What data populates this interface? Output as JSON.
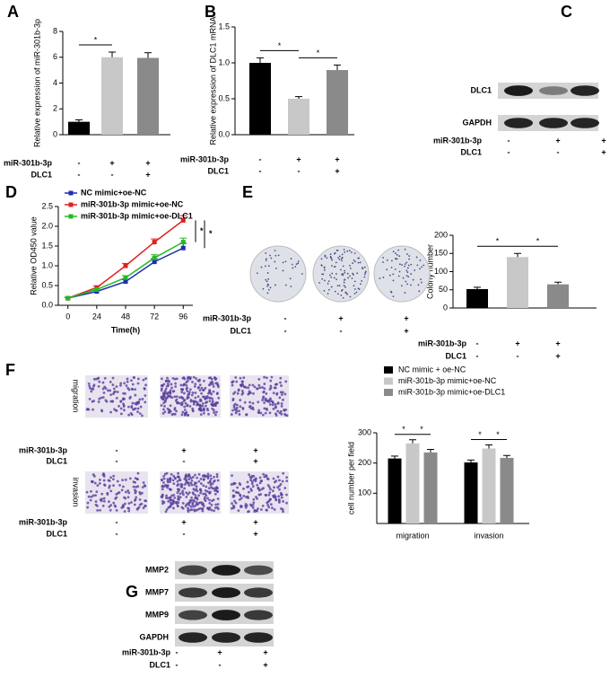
{
  "panel_labels": [
    "A",
    "B",
    "C",
    "D",
    "E",
    "F",
    "G"
  ],
  "chart_data": [
    {
      "type": "bar",
      "ylabel": "Relative expression of miR-301b-3p",
      "values": [
        1.0,
        6.0,
        5.95
      ],
      "errors": [
        0.15,
        0.4,
        0.4
      ],
      "colors": [
        "#000000",
        "#c8c8c8",
        "#8a8a8a"
      ],
      "ylim": [
        0,
        8
      ],
      "yticks": [
        0,
        2,
        4,
        6,
        8
      ],
      "annotations": [
        "*"
      ],
      "treatments": [
        {
          "label": "miR-301b-3p",
          "signs": [
            "-",
            "+",
            "+"
          ]
        },
        {
          "label": "DLC1",
          "signs": [
            "-",
            "-",
            "+"
          ]
        }
      ]
    },
    {
      "type": "bar",
      "ylabel": "Relative expression of DLC1 mRNA",
      "values": [
        1.0,
        0.5,
        0.9
      ],
      "errors": [
        0.07,
        0.03,
        0.07
      ],
      "colors": [
        "#000000",
        "#c8c8c8",
        "#8a8a8a"
      ],
      "ylim": [
        0,
        1.5
      ],
      "yticks": [
        {
          "value": 0,
          "label": "0.0"
        },
        {
          "value": 0.5,
          "label": "0.5"
        },
        {
          "value": 1,
          "label": "1.0"
        },
        {
          "value": 1.5,
          "label": "1.5"
        }
      ],
      "annotations": [
        "*",
        "*"
      ],
      "treatments": [
        {
          "label": "miR-301b-3p",
          "signs": [
            "-",
            "+",
            "+"
          ]
        },
        {
          "label": "DLC1",
          "signs": [
            "-",
            "-",
            "+"
          ]
        }
      ]
    },
    {
      "type": "line",
      "xlabel": "Time(h)",
      "ylabel": "Relative OD450 value",
      "x": [
        0,
        24,
        48,
        72,
        96
      ],
      "xlim": [
        -8,
        104
      ],
      "xticks": [
        0,
        24,
        48,
        72,
        96
      ],
      "ylim": [
        0,
        2.5
      ],
      "yticks": [
        {
          "value": 0,
          "label": "0.0"
        },
        {
          "value": 0.5,
          "label": "0.5"
        },
        {
          "value": 1,
          "label": "1.0"
        },
        {
          "value": 1.5,
          "label": "1.5"
        },
        {
          "value": 2,
          "label": "2.0"
        },
        {
          "value": 2.5,
          "label": "2.5"
        }
      ],
      "annotations": [
        "*",
        "*"
      ],
      "series": [
        {
          "name": "NC mimic+oe-NC",
          "color": "#1f2fb0",
          "values": [
            0.18,
            0.35,
            0.6,
            1.1,
            1.45
          ],
          "errors": [
            0.02,
            0.03,
            0.05,
            0.08,
            0.12
          ]
        },
        {
          "name": "miR-301b-3p mimic+oe-NC",
          "color": "#e02020",
          "values": [
            0.18,
            0.45,
            1.0,
            1.6,
            2.15
          ],
          "errors": [
            0.02,
            0.04,
            0.06,
            0.08,
            0.12
          ]
        },
        {
          "name": "miR-301b-3p mimic+oe-DLC1",
          "color": "#22bb22",
          "values": [
            0.18,
            0.4,
            0.7,
            1.2,
            1.6
          ],
          "errors": [
            0.02,
            0.03,
            0.05,
            0.08,
            0.1
          ]
        }
      ]
    },
    {
      "type": "bar",
      "ylabel": "Colony number",
      "values": [
        52,
        140,
        65
      ],
      "errors": [
        5,
        10,
        6
      ],
      "colors": [
        "#000000",
        "#c8c8c8",
        "#8a8a8a"
      ],
      "ylim": [
        0,
        200
      ],
      "yticks": [
        0,
        50,
        100,
        150,
        200
      ],
      "annotations": [
        "*",
        "*"
      ],
      "treatments": [
        {
          "label": "miR-301b-3p",
          "signs": [
            "-",
            "+",
            "+"
          ]
        },
        {
          "label": "DLC1",
          "signs": [
            "-",
            "-",
            "+"
          ]
        }
      ]
    },
    {
      "type": "grouped-bar",
      "ylabel": "cell number per field",
      "categories": [
        "migration",
        "invasion"
      ],
      "ylim": [
        0,
        300
      ],
      "yticks": [
        100,
        200,
        300
      ],
      "annotations": [
        "*",
        "*",
        "*",
        "*"
      ],
      "series": [
        {
          "name": "NC mimic + oe-NC",
          "color": "#000000",
          "values": [
            215,
            202
          ],
          "errors": [
            8,
            8
          ]
        },
        {
          "name": "miR-301b-3p mimic+oe-NC",
          "color": "#c8c8c8",
          "values": [
            265,
            248
          ],
          "errors": [
            12,
            12
          ]
        },
        {
          "name": "miR-301b-3p mimic+oe-DLC1",
          "color": "#8a8a8a",
          "values": [
            235,
            217
          ],
          "errors": [
            10,
            8
          ]
        }
      ]
    }
  ],
  "blots": [
    {
      "bands": [
        "DLC1",
        "GAPDH"
      ],
      "treatments": [
        {
          "label": "miR-301b-3p",
          "signs": [
            "-",
            "+",
            "+"
          ]
        },
        {
          "label": "DLC1",
          "signs": [
            "-",
            "-",
            "+"
          ]
        }
      ]
    },
    {
      "bands": [
        "MMP2",
        "MMP7",
        "MMP9",
        "GAPDH"
      ],
      "treatments": [
        {
          "label": "miR-301b-3p",
          "signs": [
            "-",
            "+",
            "+"
          ]
        },
        {
          "label": "DLC1",
          "signs": [
            "-",
            "-",
            "+"
          ]
        }
      ]
    }
  ],
  "colony_images": {
    "treatments": [
      {
        "label": "miR-301b-3p",
        "signs": [
          "-",
          "+",
          "+"
        ]
      },
      {
        "label": "DLC1",
        "signs": [
          "-",
          "-",
          "+"
        ]
      }
    ]
  },
  "transwell_images": [
    {
      "label": "migration",
      "treatments": [
        {
          "label": "miR-301b-3p",
          "signs": [
            "-",
            "+",
            "+"
          ]
        },
        {
          "label": "DLC1",
          "signs": [
            "-",
            "-",
            "+"
          ]
        }
      ]
    },
    {
      "label": "invasion",
      "treatments": [
        {
          "label": "miR-301b-3p",
          "signs": [
            "-",
            "+",
            "+"
          ]
        },
        {
          "label": "DLC1",
          "signs": [
            "-",
            "-",
            "+"
          ]
        }
      ]
    }
  ]
}
